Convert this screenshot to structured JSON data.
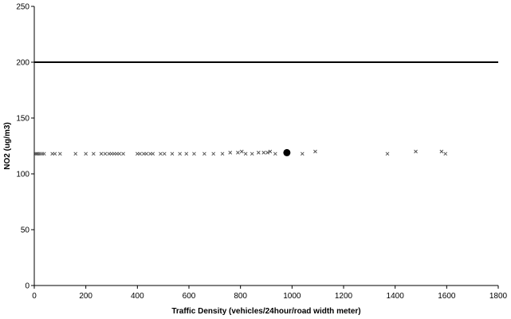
{
  "chart_data": {
    "type": "scatter",
    "title": "",
    "xlabel": "Traffic Density (vehicles/24hour/road width meter)",
    "ylabel": "NO2 (ug/m3)",
    "xlim": [
      0,
      1800
    ],
    "ylim": [
      0,
      250
    ],
    "x_ticks": [
      0,
      200,
      400,
      600,
      800,
      1000,
      1200,
      1400,
      1600,
      1800
    ],
    "y_ticks": [
      0,
      50,
      100,
      150,
      200,
      250
    ],
    "x_tick_labels": [
      "0",
      "200",
      "400",
      "600",
      "800",
      "1000",
      "1200",
      "1400",
      "1600",
      "1800"
    ],
    "y_tick_labels": [
      "0",
      "50",
      "100",
      "150",
      "200",
      "250"
    ],
    "grid": false,
    "legend": "none",
    "reference_line": {
      "y": 200,
      "color": "#000000"
    },
    "series": [
      {
        "marker": "small-x",
        "color": "#555555",
        "points": [
          {
            "x": 5,
            "y": 118
          },
          {
            "x": 10,
            "y": 118
          },
          {
            "x": 15,
            "y": 118
          },
          {
            "x": 22,
            "y": 118
          },
          {
            "x": 30,
            "y": 118
          },
          {
            "x": 38,
            "y": 118
          },
          {
            "x": 70,
            "y": 118
          },
          {
            "x": 80,
            "y": 118
          },
          {
            "x": 100,
            "y": 118
          },
          {
            "x": 160,
            "y": 118
          },
          {
            "x": 200,
            "y": 118
          },
          {
            "x": 230,
            "y": 118
          },
          {
            "x": 260,
            "y": 118
          },
          {
            "x": 275,
            "y": 118
          },
          {
            "x": 290,
            "y": 118
          },
          {
            "x": 300,
            "y": 118
          },
          {
            "x": 310,
            "y": 118
          },
          {
            "x": 320,
            "y": 118
          },
          {
            "x": 330,
            "y": 118
          },
          {
            "x": 345,
            "y": 118
          },
          {
            "x": 400,
            "y": 118
          },
          {
            "x": 410,
            "y": 118
          },
          {
            "x": 425,
            "y": 118
          },
          {
            "x": 435,
            "y": 118
          },
          {
            "x": 450,
            "y": 118
          },
          {
            "x": 460,
            "y": 118
          },
          {
            "x": 490,
            "y": 118
          },
          {
            "x": 505,
            "y": 118
          },
          {
            "x": 535,
            "y": 118
          },
          {
            "x": 565,
            "y": 118
          },
          {
            "x": 590,
            "y": 118
          },
          {
            "x": 620,
            "y": 118
          },
          {
            "x": 660,
            "y": 118
          },
          {
            "x": 695,
            "y": 118
          },
          {
            "x": 730,
            "y": 118
          },
          {
            "x": 760,
            "y": 119
          },
          {
            "x": 790,
            "y": 119
          },
          {
            "x": 805,
            "y": 120
          },
          {
            "x": 820,
            "y": 118
          },
          {
            "x": 845,
            "y": 118
          },
          {
            "x": 870,
            "y": 119
          },
          {
            "x": 890,
            "y": 119
          },
          {
            "x": 905,
            "y": 119
          },
          {
            "x": 915,
            "y": 120
          },
          {
            "x": 935,
            "y": 118
          },
          {
            "x": 1040,
            "y": 118
          },
          {
            "x": 1090,
            "y": 120
          },
          {
            "x": 1370,
            "y": 118
          },
          {
            "x": 1480,
            "y": 120
          },
          {
            "x": 1580,
            "y": 120
          },
          {
            "x": 1595,
            "y": 118
          }
        ]
      },
      {
        "marker": "large-dot",
        "color": "#000000",
        "points": [
          {
            "x": 980,
            "y": 119
          }
        ]
      }
    ]
  }
}
